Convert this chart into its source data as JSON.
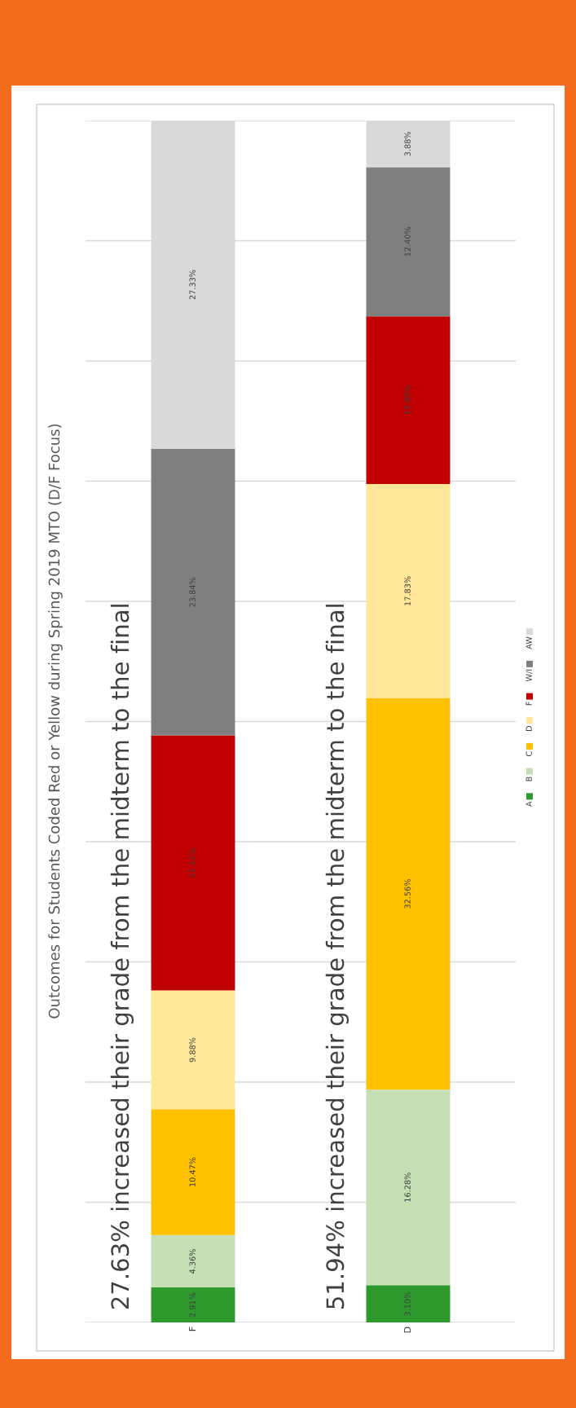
{
  "chart_data": {
    "type": "bar",
    "stacked": true,
    "title": "Outcomes for Students Coded Red or Yellow during Spring 2019 MTO (D/F Focus)",
    "categories": [
      "F",
      "D"
    ],
    "series": [
      {
        "name": "A",
        "color": "#2e9a2e",
        "values": [
          2.91,
          3.1
        ],
        "value_labels": [
          "2.91%",
          "3.10%"
        ]
      },
      {
        "name": "B",
        "color": "#c5e0b4",
        "values": [
          4.36,
          16.28
        ],
        "value_labels": [
          "4.36%",
          "16.28%"
        ]
      },
      {
        "name": "C",
        "color": "#ffc000",
        "values": [
          10.47,
          32.56
        ],
        "value_labels": [
          "10.47%",
          "32.56%"
        ]
      },
      {
        "name": "D",
        "color": "#ffe699",
        "values": [
          9.88,
          17.83
        ],
        "value_labels": [
          "9.88%",
          "17.83%"
        ]
      },
      {
        "name": "F",
        "color": "#c00000",
        "values": [
          21.22,
          13.95
        ],
        "value_labels": [
          "21.22%",
          "13.95%"
        ]
      },
      {
        "name": "W/I",
        "color": "#7f7f7f",
        "values": [
          23.84,
          12.4
        ],
        "value_labels": [
          "23.84%",
          "12.40%"
        ]
      },
      {
        "name": "AW",
        "color": "#d9d9d9",
        "values": [
          27.33,
          3.88
        ],
        "value_labels": [
          "27.33%",
          "3.88%"
        ]
      }
    ],
    "annotations": [
      "27.63% increased their grade from the midterm to the final",
      "51.94% increased their grade from the midterm to the final"
    ],
    "ylim": [
      0,
      100
    ],
    "yticks": [
      {
        "value": 0,
        "label": null
      },
      {
        "value": 10,
        "label": null
      },
      {
        "value": 20,
        "label": null
      },
      {
        "value": 30,
        "label": null
      },
      {
        "value": 40,
        "label": null
      },
      {
        "value": 50,
        "label": null
      },
      {
        "value": 60,
        "label": null
      },
      {
        "value": 70,
        "label": null
      },
      {
        "value": 80,
        "label": null
      },
      {
        "value": 90,
        "label": null
      },
      {
        "value": 100,
        "label": null
      }
    ],
    "grid": "y",
    "legend": "right",
    "tick_labels": "x"
  }
}
